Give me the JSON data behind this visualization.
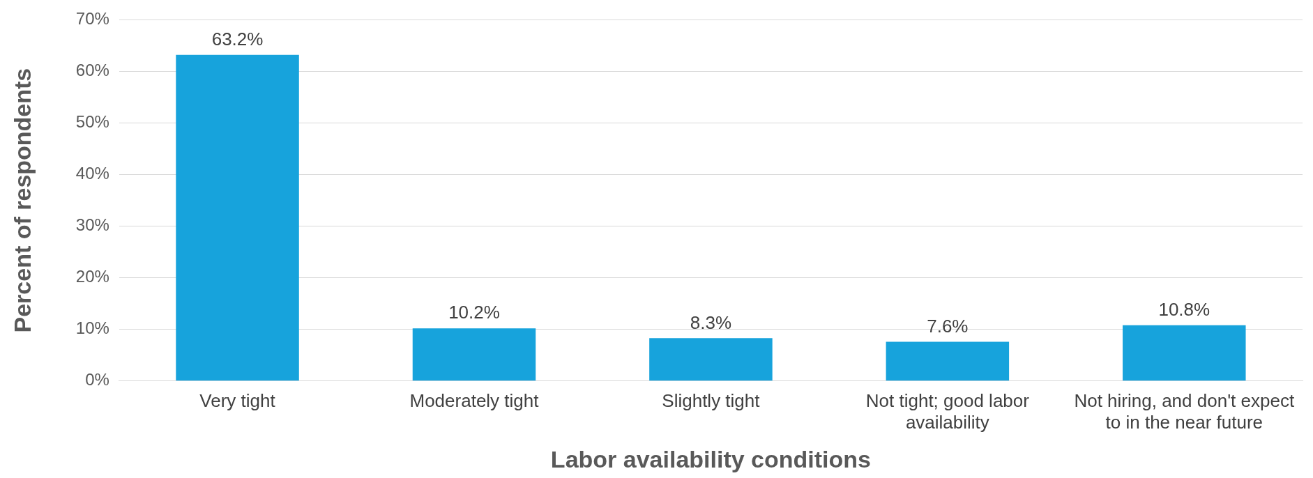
{
  "chart_data": {
    "type": "bar",
    "xlabel": "Labor availability conditions",
    "ylabel": "Percent of respondents",
    "categories": [
      "Very tight",
      "Moderately tight",
      "Slightly tight",
      "Not tight; good labor availability",
      "Not hiring, and don't expect to in the near future"
    ],
    "values": [
      63.2,
      10.2,
      8.3,
      7.6,
      10.8
    ],
    "value_labels": [
      "63.2%",
      "10.2%",
      "8.3%",
      "7.6%",
      "10.8%"
    ],
    "color": "#17a3dc",
    "ylim": [
      0,
      70
    ],
    "yticks": [
      {
        "value": 0,
        "label": "0%"
      },
      {
        "value": 10,
        "label": "10%"
      },
      {
        "value": 20,
        "label": "20%"
      },
      {
        "value": 30,
        "label": "30%"
      },
      {
        "value": 40,
        "label": "40%"
      },
      {
        "value": 50,
        "label": "50%"
      },
      {
        "value": 60,
        "label": "60%"
      },
      {
        "value": 70,
        "label": "70%"
      }
    ],
    "grid": "y",
    "legend": false
  }
}
